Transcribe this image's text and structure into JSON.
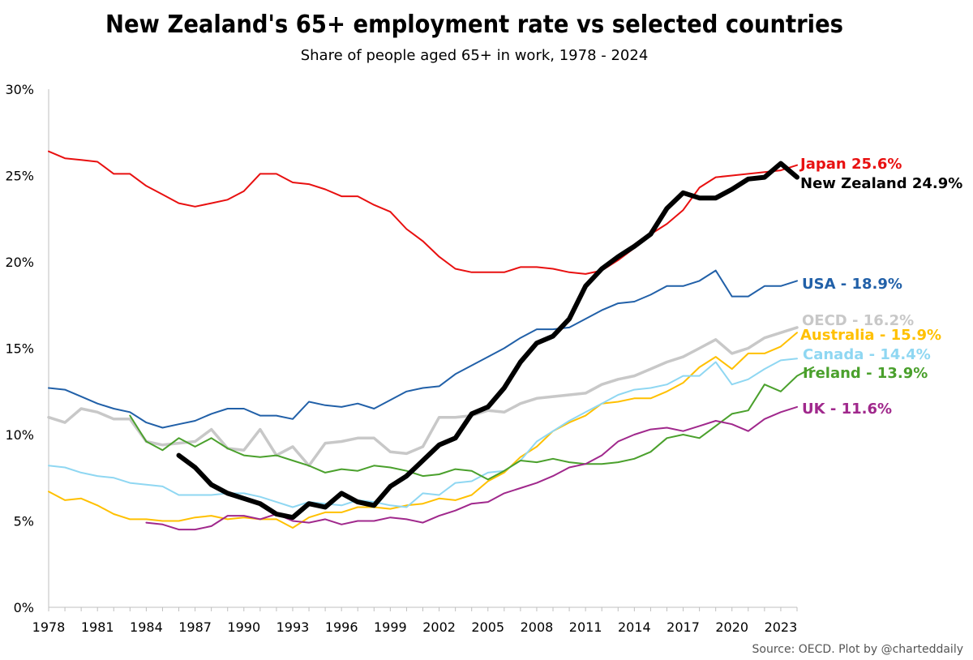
{
  "chart_data": {
    "type": "line",
    "title": "New Zealand's 65+ employment rate vs selected countries",
    "subtitle": "Share of people aged 65+ in work, 1978 - 2024",
    "source": "Source: OECD. Plot by @charteddaily",
    "xlabel": "",
    "ylabel": "",
    "xlim": [
      1978,
      2024
    ],
    "ylim": [
      0,
      30
    ],
    "x_ticks": [
      1978,
      1981,
      1984,
      1987,
      1990,
      1993,
      1996,
      1999,
      2002,
      2005,
      2008,
      2011,
      2014,
      2017,
      2020,
      2023
    ],
    "x_tick_labels": [
      "1978",
      "1981",
      "1984",
      "1987",
      "1990",
      "1993",
      "1996",
      "1999",
      "2002",
      "2005",
      "2008",
      "2011",
      "2014",
      "2017",
      "2020",
      "2023"
    ],
    "y_ticks": [
      0,
      5,
      10,
      15,
      20,
      25,
      30
    ],
    "y_tick_labels": [
      "0%",
      "5%",
      "10%",
      "15%",
      "20%",
      "25%",
      "30%"
    ],
    "grid": false,
    "series": [
      {
        "name": "OECD",
        "label": "OECD - 16.2%",
        "color": "#c8c8c8",
        "width": 3.5,
        "start": 1978,
        "values": [
          11.0,
          10.7,
          11.5,
          11.3,
          10.9,
          10.9,
          9.6,
          9.4,
          9.5,
          9.6,
          10.3,
          9.2,
          9.1,
          10.3,
          8.8,
          9.3,
          8.2,
          9.5,
          9.6,
          9.8,
          9.8,
          9.0,
          8.9,
          9.3,
          11.0,
          11.0,
          11.1,
          11.4,
          11.3,
          11.8,
          12.1,
          12.2,
          12.3,
          12.4,
          12.9,
          13.2,
          13.4,
          13.8,
          14.2,
          14.5,
          15.0,
          15.5,
          14.7,
          15.0,
          15.6,
          15.9,
          16.2
        ]
      },
      {
        "name": "Australia",
        "label": "Australia - 15.9%",
        "color": "#ffc000",
        "width": 2,
        "start": 1978,
        "values": [
          6.7,
          6.2,
          6.3,
          5.9,
          5.4,
          5.1,
          5.1,
          5.0,
          5.0,
          5.2,
          5.3,
          5.1,
          5.2,
          5.1,
          5.1,
          4.6,
          5.2,
          5.5,
          5.5,
          5.8,
          5.8,
          5.7,
          5.9,
          6.0,
          6.3,
          6.2,
          6.5,
          7.3,
          7.8,
          8.7,
          9.3,
          10.2,
          10.7,
          11.1,
          11.8,
          11.9,
          12.1,
          12.1,
          12.5,
          13.0,
          13.9,
          14.5,
          13.8,
          14.7,
          14.7,
          15.1,
          15.9
        ]
      },
      {
        "name": "Canada",
        "label": "Canada - 14.4%",
        "color": "#8fd7f2",
        "width": 2,
        "start": 1978,
        "values": [
          8.2,
          8.1,
          7.8,
          7.6,
          7.5,
          7.2,
          7.1,
          7.0,
          6.5,
          6.5,
          6.5,
          6.6,
          6.6,
          6.4,
          6.1,
          5.8,
          6.1,
          6.0,
          5.9,
          6.2,
          6.1,
          5.9,
          5.8,
          6.6,
          6.5,
          7.2,
          7.3,
          7.8,
          7.9,
          8.5,
          9.6,
          10.2,
          10.8,
          11.3,
          11.8,
          12.3,
          12.6,
          12.7,
          12.9,
          13.4,
          13.4,
          14.2,
          12.9,
          13.2,
          13.8,
          14.3,
          14.4
        ]
      },
      {
        "name": "Ireland",
        "label": "Ireland - 13.9%",
        "color": "#4aa02c",
        "width": 2,
        "start": 1983,
        "values": [
          11.1,
          9.6,
          9.1,
          9.8,
          9.3,
          9.8,
          9.2,
          8.8,
          8.7,
          8.8,
          8.5,
          8.2,
          7.8,
          8.0,
          7.9,
          8.2,
          8.1,
          7.9,
          7.6,
          7.7,
          8.0,
          7.9,
          7.4,
          7.9,
          8.5,
          8.4,
          8.6,
          8.4,
          8.3,
          8.3,
          8.4,
          8.6,
          9.0,
          9.8,
          10.0,
          9.8,
          10.5,
          11.2,
          11.4,
          12.9,
          12.5,
          13.4,
          13.9
        ]
      },
      {
        "name": "UK",
        "label": "UK - 11.6%",
        "color": "#a0288c",
        "width": 2,
        "start": 1984,
        "values": [
          4.9,
          4.8,
          4.5,
          4.5,
          4.7,
          5.3,
          5.3,
          5.1,
          5.4,
          5.0,
          4.9,
          5.1,
          4.8,
          5.0,
          5.0,
          5.2,
          5.1,
          4.9,
          5.3,
          5.6,
          6.0,
          6.1,
          6.6,
          6.9,
          7.2,
          7.6,
          8.1,
          8.3,
          8.8,
          9.6,
          10.0,
          10.3,
          10.4,
          10.2,
          10.5,
          10.8,
          10.6,
          10.2,
          10.9,
          11.3,
          11.6
        ]
      },
      {
        "name": "USA",
        "label": "USA - 18.9%",
        "color": "#2160a8",
        "width": 2,
        "start": 1978,
        "values": [
          12.7,
          12.6,
          12.2,
          11.8,
          11.5,
          11.3,
          10.7,
          10.4,
          10.6,
          10.8,
          11.2,
          11.5,
          11.5,
          11.1,
          11.1,
          10.9,
          11.9,
          11.7,
          11.6,
          11.8,
          11.5,
          12.0,
          12.5,
          12.7,
          12.8,
          13.5,
          14.0,
          14.5,
          15.0,
          15.6,
          16.1,
          16.1,
          16.2,
          16.7,
          17.2,
          17.6,
          17.7,
          18.1,
          18.6,
          18.6,
          18.9,
          19.5,
          18.0,
          18.0,
          18.6,
          18.6,
          18.9
        ]
      },
      {
        "name": "Japan",
        "label": "Japan 25.6%",
        "color": "#e81010",
        "width": 2,
        "start": 1978,
        "values": [
          26.4,
          26.0,
          25.9,
          25.8,
          25.1,
          25.1,
          24.4,
          23.9,
          23.4,
          23.2,
          23.4,
          23.6,
          24.1,
          25.1,
          25.1,
          24.6,
          24.5,
          24.2,
          23.8,
          23.8,
          23.3,
          22.9,
          21.9,
          21.2,
          20.3,
          19.6,
          19.4,
          19.4,
          19.4,
          19.7,
          19.7,
          19.6,
          19.4,
          19.3,
          19.5,
          20.1,
          20.8,
          21.6,
          22.2,
          23.0,
          24.3,
          24.9,
          25.0,
          25.1,
          25.2,
          25.3,
          25.6
        ]
      },
      {
        "name": "New Zealand",
        "label": "New Zealand 24.9%",
        "color": "#000000",
        "width": 6,
        "start": 1986,
        "values": [
          8.8,
          8.1,
          7.1,
          6.6,
          6.3,
          6.0,
          5.4,
          5.2,
          6.0,
          5.8,
          6.6,
          6.1,
          5.9,
          7.0,
          7.6,
          8.5,
          9.4,
          9.8,
          11.2,
          11.6,
          12.7,
          14.2,
          15.3,
          15.7,
          16.7,
          18.6,
          19.6,
          20.3,
          20.9,
          21.6,
          23.1,
          24.0,
          23.7,
          23.7,
          24.2,
          24.8,
          24.9,
          25.7,
          24.9
        ]
      }
    ]
  }
}
